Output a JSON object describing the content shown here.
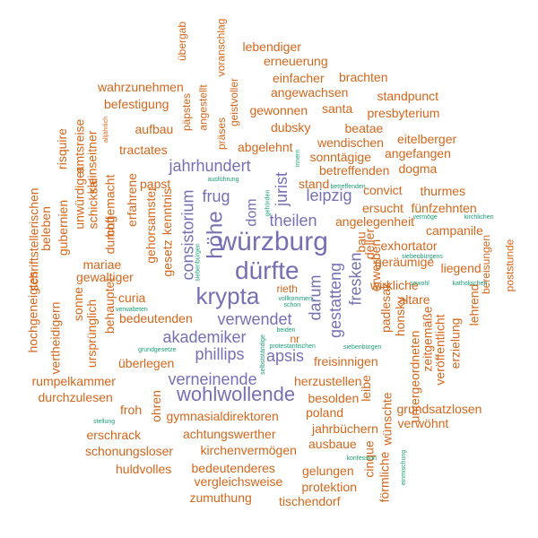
{
  "cloud": {
    "colors": {
      "primary": "#7470b3",
      "secondary": "#d4661b",
      "minor": "#1b9e77"
    },
    "words": [
      {
        "text": "würzburg",
        "color": "primary"
      },
      {
        "text": "dürfte",
        "color": "primary"
      },
      {
        "text": "krypta",
        "color": "primary"
      },
      {
        "text": "höhe",
        "color": "primary"
      },
      {
        "text": "akademiker",
        "color": "primary"
      },
      {
        "text": "wohlwollende",
        "color": "primary"
      },
      {
        "text": "verneinende",
        "color": "primary"
      },
      {
        "text": "verwendet",
        "color": "primary"
      },
      {
        "text": "jahrhundert",
        "color": "primary"
      },
      {
        "text": "phillips",
        "color": "primary"
      },
      {
        "text": "apsis",
        "color": "primary"
      },
      {
        "text": "theilen",
        "color": "primary"
      },
      {
        "text": "leipzig",
        "color": "primary"
      },
      {
        "text": "frug",
        "color": "primary"
      },
      {
        "text": "consistorium",
        "color": "primary"
      },
      {
        "text": "jurist",
        "color": "primary"
      },
      {
        "text": "dom",
        "color": "primary"
      },
      {
        "text": "darum",
        "color": "primary"
      },
      {
        "text": "gestatteng",
        "color": "primary"
      },
      {
        "text": "fresken",
        "color": "primary"
      },
      {
        "text": "lebendiger",
        "color": "secondary"
      },
      {
        "text": "erneuerung",
        "color": "secondary"
      },
      {
        "text": "übergab",
        "color": "secondary"
      },
      {
        "text": "voranschlag",
        "color": "secondary"
      },
      {
        "text": "einfacher",
        "color": "secondary"
      },
      {
        "text": "brachten",
        "color": "secondary"
      },
      {
        "text": "wahrzunehmen",
        "color": "secondary"
      },
      {
        "text": "angewachsen",
        "color": "secondary"
      },
      {
        "text": "standpunct",
        "color": "secondary"
      },
      {
        "text": "befestigung",
        "color": "secondary"
      },
      {
        "text": "geistvoller",
        "color": "secondary"
      },
      {
        "text": "gewonnen",
        "color": "secondary"
      },
      {
        "text": "santa",
        "color": "secondary"
      },
      {
        "text": "presbyterium",
        "color": "secondary"
      },
      {
        "text": "aufbau",
        "color": "secondary"
      },
      {
        "text": "päpstes",
        "color": "secondary"
      },
      {
        "text": "angestellt",
        "color": "secondary"
      },
      {
        "text": "dubsky",
        "color": "secondary"
      },
      {
        "text": "beatae",
        "color": "secondary"
      },
      {
        "text": "präses",
        "color": "secondary"
      },
      {
        "text": "eitelberger",
        "color": "secondary"
      },
      {
        "text": "tractates",
        "color": "secondary"
      },
      {
        "text": "abgelehnt",
        "color": "secondary"
      },
      {
        "text": "wendischen",
        "color": "secondary"
      },
      {
        "text": "angefangen",
        "color": "secondary"
      },
      {
        "text": "sonntägige",
        "color": "secondary"
      },
      {
        "text": "dogma",
        "color": "secondary"
      },
      {
        "text": "betreffenden",
        "color": "secondary"
      },
      {
        "text": "papst",
        "color": "secondary"
      },
      {
        "text": "stand",
        "color": "secondary"
      },
      {
        "text": "convict",
        "color": "secondary"
      },
      {
        "text": "thurmes",
        "color": "secondary"
      },
      {
        "text": "ersucht",
        "color": "secondary"
      },
      {
        "text": "fünfzehnten",
        "color": "secondary"
      },
      {
        "text": "angelegenheit",
        "color": "secondary"
      },
      {
        "text": "campanile",
        "color": "secondary"
      },
      {
        "text": "exhortator",
        "color": "secondary"
      },
      {
        "text": "geräumige",
        "color": "secondary"
      },
      {
        "text": "liegend",
        "color": "secondary"
      },
      {
        "text": "bereisungen",
        "color": "secondary"
      },
      {
        "text": "poststunde",
        "color": "secondary"
      },
      {
        "text": "wirkliche",
        "color": "secondary"
      },
      {
        "text": "altare",
        "color": "secondary"
      },
      {
        "text": "rieth",
        "color": "secondary"
      },
      {
        "text": "curia",
        "color": "secondary"
      },
      {
        "text": "gewaltiger",
        "color": "secondary"
      },
      {
        "text": "mariae",
        "color": "secondary"
      },
      {
        "text": "bedeutenden",
        "color": "secondary"
      },
      {
        "text": "nr",
        "color": "secondary"
      },
      {
        "text": "überlegen",
        "color": "secondary"
      },
      {
        "text": "freisinnigen",
        "color": "secondary"
      },
      {
        "text": "herzustellen",
        "color": "secondary"
      },
      {
        "text": "rumpelkammer",
        "color": "secondary"
      },
      {
        "text": "durchzulesen",
        "color": "secondary"
      },
      {
        "text": "besolden",
        "color": "secondary"
      },
      {
        "text": "froh",
        "color": "secondary"
      },
      {
        "text": "gymnasialdirektoren",
        "color": "secondary"
      },
      {
        "text": "poland",
        "color": "secondary"
      },
      {
        "text": "jahrbüchern",
        "color": "secondary"
      },
      {
        "text": "grundsatzlosen",
        "color": "secondary"
      },
      {
        "text": "verwöhnt",
        "color": "secondary"
      },
      {
        "text": "erschrack",
        "color": "secondary"
      },
      {
        "text": "achtungswerther",
        "color": "secondary"
      },
      {
        "text": "ausbaue",
        "color": "secondary"
      },
      {
        "text": "schonungsloser",
        "color": "secondary"
      },
      {
        "text": "kirchenvermögen",
        "color": "secondary"
      },
      {
        "text": "huldvolles",
        "color": "secondary"
      },
      {
        "text": "bedeutenderes",
        "color": "secondary"
      },
      {
        "text": "gelungen",
        "color": "secondary"
      },
      {
        "text": "vergleichsweise",
        "color": "secondary"
      },
      {
        "text": "protektion",
        "color": "secondary"
      },
      {
        "text": "zumuthung",
        "color": "secondary"
      },
      {
        "text": "tischendorf",
        "color": "secondary"
      },
      {
        "text": "hochgeneigtes",
        "color": "secondary"
      },
      {
        "text": "vertheidigern",
        "color": "secondary"
      },
      {
        "text": "schriftstellerischen",
        "color": "secondary"
      },
      {
        "text": "beleben",
        "color": "secondary"
      },
      {
        "text": "gubernien",
        "color": "secondary"
      },
      {
        "text": "risquire",
        "color": "secondary"
      },
      {
        "text": "unwürdiger",
        "color": "secondary"
      },
      {
        "text": "amtsreise",
        "color": "secondary"
      },
      {
        "text": "schicksal",
        "color": "secondary"
      },
      {
        "text": "kleinseitner",
        "color": "secondary"
      },
      {
        "text": "durchgemacht",
        "color": "secondary"
      },
      {
        "text": "hoff",
        "color": "secondary"
      },
      {
        "text": "erfahrene",
        "color": "secondary"
      },
      {
        "text": "sonne",
        "color": "secondary"
      },
      {
        "text": "ursprünglich",
        "color": "secondary"
      },
      {
        "text": "behauptet",
        "color": "secondary"
      },
      {
        "text": "gehorsamster",
        "color": "secondary"
      },
      {
        "text": "kenntnis",
        "color": "secondary"
      },
      {
        "text": "gesetz",
        "color": "secondary"
      },
      {
        "text": "ohren",
        "color": "secondary"
      },
      {
        "text": "bau",
        "color": "secondary"
      },
      {
        "text": "deller",
        "color": "secondary"
      },
      {
        "text": "erwerben",
        "color": "secondary"
      },
      {
        "text": "padlesak",
        "color": "secondary"
      },
      {
        "text": "honsky",
        "color": "secondary"
      },
      {
        "text": "untergeordneten",
        "color": "secondary"
      },
      {
        "text": "zeitgemäße",
        "color": "secondary"
      },
      {
        "text": "veröffentlicht",
        "color": "secondary"
      },
      {
        "text": "erzielung",
        "color": "secondary"
      },
      {
        "text": "lehrend",
        "color": "secondary"
      },
      {
        "text": "leibe",
        "color": "secondary"
      },
      {
        "text": "cinque",
        "color": "secondary"
      },
      {
        "text": "förmliche",
        "color": "secondary"
      },
      {
        "text": "wünschte",
        "color": "secondary"
      },
      {
        "text": "alljährlich",
        "color": "secondary"
      },
      {
        "text": "ausführung",
        "color": "minor"
      },
      {
        "text": "innern",
        "color": "minor"
      },
      {
        "text": "betreffenden",
        "color": "minor"
      },
      {
        "text": "gehörden",
        "color": "minor"
      },
      {
        "text": "vermöge",
        "color": "minor"
      },
      {
        "text": "kirchlichen",
        "color": "minor"
      },
      {
        "text": "siebenbürgens",
        "color": "minor"
      },
      {
        "text": "siebenbürgen",
        "color": "minor"
      },
      {
        "text": "katholischen",
        "color": "minor"
      },
      {
        "text": "verwalteten",
        "color": "minor"
      },
      {
        "text": "vollkommen",
        "color": "minor"
      },
      {
        "text": "schon",
        "color": "minor"
      },
      {
        "text": "beiden",
        "color": "minor"
      },
      {
        "text": "sowohl",
        "color": "minor"
      },
      {
        "text": "grundgesetze",
        "color": "minor"
      },
      {
        "text": "siebenbürgen",
        "color": "minor"
      },
      {
        "text": "protestantischen",
        "color": "minor"
      },
      {
        "text": "stellung",
        "color": "minor"
      },
      {
        "text": "konfession",
        "color": "minor"
      },
      {
        "text": "einmischung",
        "color": "minor"
      },
      {
        "text": "selbstständige",
        "color": "minor"
      },
      {
        "text": "angehörigen",
        "color": "minor"
      },
      {
        "text": "regierung",
        "color": "minor"
      }
    ]
  }
}
